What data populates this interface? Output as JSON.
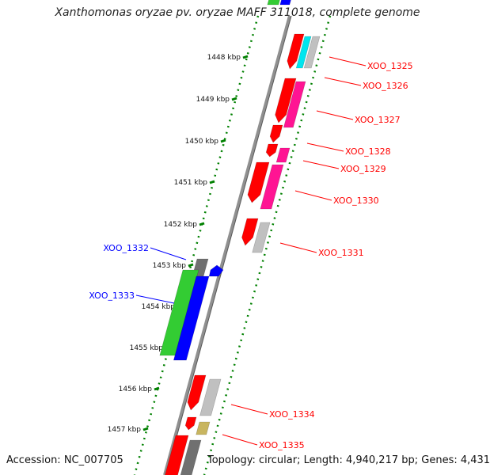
{
  "title": "Xanthomonas oryzae pv. oryzae MAFF 311018, complete genome",
  "footer": {
    "accession": "Accession: NC_007705",
    "summary": "Topology: circular; Length: 4,940,217 bp; Genes: 4,431"
  },
  "ticks": [
    "1448 kbp",
    "1449 kbp",
    "1450 kbp",
    "1451 kbp",
    "1452 kbp",
    "1453 kbp",
    "1454 kbp",
    "1455 kbp",
    "1456 kbp",
    "1457 kbp"
  ],
  "gene_labels": [
    {
      "name": "XOO_1325",
      "strand": "right"
    },
    {
      "name": "XOO_1326",
      "strand": "right"
    },
    {
      "name": "XOO_1327",
      "strand": "right"
    },
    {
      "name": "XOO_1328",
      "strand": "right"
    },
    {
      "name": "XOO_1329",
      "strand": "right"
    },
    {
      "name": "XOO_1330",
      "strand": "right"
    },
    {
      "name": "XOO_1331",
      "strand": "right"
    },
    {
      "name": "XOO_1332",
      "strand": "left"
    },
    {
      "name": "XOO_1333",
      "strand": "left"
    },
    {
      "name": "XOO_1334",
      "strand": "right"
    },
    {
      "name": "XOO_1335",
      "strand": "right"
    }
  ],
  "colors": {
    "red": "#ff0000",
    "magenta": "#ff1493",
    "cyan": "#00e5ee",
    "gray": "#c0c0c0",
    "darkgray": "#707070",
    "green": "#33cc33",
    "blue": "#0000ff",
    "olive": "#c8b560",
    "backbone": "#808080",
    "tickgreen": "#008000",
    "label_red": "#ff0000",
    "label_blue": "#0000ff"
  }
}
